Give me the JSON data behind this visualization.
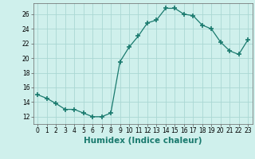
{
  "x": [
    0,
    1,
    2,
    3,
    4,
    5,
    6,
    7,
    8,
    9,
    10,
    11,
    12,
    13,
    14,
    15,
    16,
    17,
    18,
    19,
    20,
    21,
    22,
    23
  ],
  "y": [
    15,
    14.5,
    13.8,
    13,
    13,
    12.5,
    12,
    12,
    12.5,
    19.5,
    21.5,
    23,
    24.8,
    25.2,
    26.8,
    26.8,
    26,
    25.8,
    24.5,
    24,
    22.2,
    21,
    20.5,
    22.5
  ],
  "line_color": "#1a7a6e",
  "marker": "+",
  "marker_size": 5,
  "bg_color": "#cff0ec",
  "grid_color_major": "#aad8d3",
  "grid_color_minor": "#c4eae6",
  "xlabel": "Humidex (Indice chaleur)",
  "xlim": [
    -0.5,
    23.5
  ],
  "ylim": [
    11,
    27.5
  ],
  "yticks": [
    12,
    14,
    16,
    18,
    20,
    22,
    24,
    26
  ],
  "xticks": [
    0,
    1,
    2,
    3,
    4,
    5,
    6,
    7,
    8,
    9,
    10,
    11,
    12,
    13,
    14,
    15,
    16,
    17,
    18,
    19,
    20,
    21,
    22,
    23
  ],
  "tick_label_fontsize": 5.5,
  "xlabel_fontsize": 7.5
}
